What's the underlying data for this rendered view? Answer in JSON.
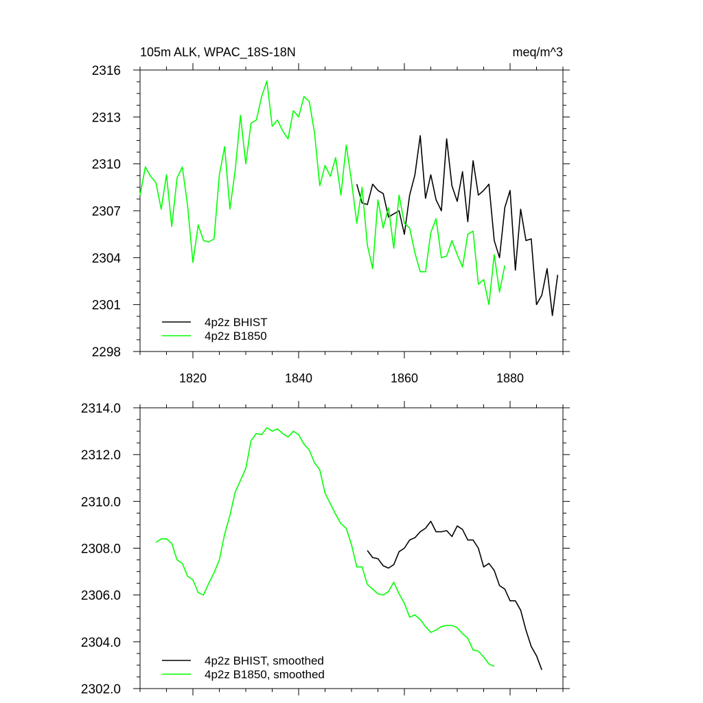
{
  "chart_data": [
    {
      "type": "line",
      "title_left": "105m ALK, WPAC_18S-18N",
      "title_right": "meq/m^3",
      "xlabel": "",
      "ylabel": "",
      "xlim": [
        1810,
        1890
      ],
      "ylim": [
        2298,
        2316
      ],
      "xticks": [
        1820,
        1840,
        1860,
        1880
      ],
      "xtick_labels": [
        "1820",
        "1840",
        "1860",
        "1880"
      ],
      "yticks": [
        2298,
        2301,
        2304,
        2307,
        2310,
        2313,
        2316
      ],
      "ytick_labels": [
        "2298",
        "2301",
        "2304",
        "2307",
        "2310",
        "2313",
        "2316"
      ],
      "grid": false,
      "legend_position": "bottom-left",
      "series": [
        {
          "name": "4p2z BHIST",
          "color": "#000000",
          "x": [
            1851,
            1852,
            1853,
            1854,
            1855,
            1856,
            1857,
            1858,
            1859,
            1860,
            1861,
            1862,
            1863,
            1864,
            1865,
            1866,
            1867,
            1868,
            1869,
            1870,
            1871,
            1872,
            1873,
            1874,
            1875,
            1876,
            1877,
            1878,
            1879,
            1880,
            1881,
            1882,
            1883,
            1884,
            1885,
            1886,
            1887,
            1888,
            1889
          ],
          "y": [
            2308.7,
            2307.5,
            2307.4,
            2308.7,
            2308.3,
            2308.1,
            2306.6,
            2306.8,
            2307.0,
            2305.5,
            2308.0,
            2309.3,
            2311.8,
            2307.8,
            2309.3,
            2307.7,
            2307.0,
            2311.6,
            2308.6,
            2307.6,
            2309.5,
            2306.3,
            2310.2,
            2308.0,
            2308.3,
            2308.7,
            2305.1,
            2304.0,
            2307.2,
            2308.3,
            2303.2,
            2307.1,
            2305.1,
            2305.2,
            2301.0,
            2301.6,
            2303.3,
            2300.3,
            2302.9
          ]
        },
        {
          "name": "4p2z B1850",
          "color": "#00ff00",
          "x": [
            1810,
            1811,
            1812,
            1813,
            1814,
            1815,
            1816,
            1817,
            1818,
            1819,
            1820,
            1821,
            1822,
            1823,
            1824,
            1825,
            1826,
            1827,
            1828,
            1829,
            1830,
            1831,
            1832,
            1833,
            1834,
            1835,
            1836,
            1837,
            1838,
            1839,
            1840,
            1841,
            1842,
            1843,
            1844,
            1845,
            1846,
            1847,
            1848,
            1849,
            1850,
            1851,
            1852,
            1853,
            1854,
            1855,
            1856,
            1857,
            1858,
            1859,
            1860,
            1861,
            1862,
            1863,
            1864,
            1865,
            1866,
            1867,
            1868,
            1869,
            1870,
            1871,
            1872,
            1873,
            1874,
            1875,
            1876,
            1877,
            1878,
            1879
          ],
          "y": [
            2308.0,
            2309.8,
            2309.2,
            2308.8,
            2307.1,
            2309.3,
            2306.0,
            2309.1,
            2309.8,
            2307.3,
            2303.7,
            2306.1,
            2305.1,
            2305.0,
            2305.2,
            2309.3,
            2311.1,
            2307.1,
            2309.6,
            2313.1,
            2310.0,
            2312.6,
            2312.8,
            2314.3,
            2315.3,
            2312.4,
            2312.8,
            2312.1,
            2311.6,
            2313.4,
            2313.0,
            2314.3,
            2314.0,
            2312.0,
            2308.6,
            2309.9,
            2309.2,
            2310.4,
            2308.0,
            2311.2,
            2308.9,
            2306.2,
            2308.5,
            2304.8,
            2303.3,
            2307.7,
            2305.9,
            2307.2,
            2304.6,
            2308.0,
            2306.2,
            2305.9,
            2304.3,
            2303.1,
            2303.1,
            2305.6,
            2306.5,
            2304.0,
            2304.1,
            2305.1,
            2304.2,
            2303.4,
            2305.5,
            2305.7,
            2302.3,
            2302.6,
            2301.0,
            2304.2,
            2301.8,
            2303.5
          ]
        }
      ]
    },
    {
      "type": "line",
      "title": "",
      "xlabel": "",
      "ylabel": "",
      "xlim": [
        1810,
        1890
      ],
      "ylim": [
        2302,
        2314
      ],
      "xticks": [
        1820,
        1840,
        1860,
        1880
      ],
      "yticks": [
        2302,
        2304,
        2306,
        2308,
        2310,
        2312,
        2314
      ],
      "ytick_labels": [
        "2302.0",
        "2304.0",
        "2306.0",
        "2308.0",
        "2310.0",
        "2312.0",
        "2314.0"
      ],
      "grid": false,
      "legend_position": "bottom-left",
      "series": [
        {
          "name": "4p2z BHIST, smoothed",
          "color": "#000000",
          "x": [
            1853,
            1854,
            1855,
            1856,
            1857,
            1858,
            1859,
            1860,
            1861,
            1862,
            1863,
            1864,
            1865,
            1866,
            1867,
            1868,
            1869,
            1870,
            1871,
            1872,
            1873,
            1874,
            1875,
            1876,
            1877,
            1878,
            1879,
            1880,
            1881,
            1882,
            1883,
            1884,
            1885,
            1886
          ],
          "y": [
            2307.9,
            2307.6,
            2307.55,
            2307.25,
            2307.15,
            2307.3,
            2307.85,
            2308.0,
            2308.35,
            2308.45,
            2308.7,
            2308.85,
            2309.15,
            2308.7,
            2308.7,
            2308.75,
            2308.5,
            2308.95,
            2308.8,
            2308.35,
            2308.35,
            2308.0,
            2307.2,
            2307.35,
            2307.05,
            2306.4,
            2306.25,
            2305.75,
            2305.75,
            2305.35,
            2304.5,
            2303.8,
            2303.4,
            2302.8
          ]
        },
        {
          "name": "4p2z B1850, smoothed",
          "color": "#00ff00",
          "x": [
            1813,
            1814,
            1815,
            1816,
            1817,
            1818,
            1819,
            1820,
            1821,
            1822,
            1823,
            1824,
            1825,
            1826,
            1827,
            1828,
            1829,
            1830,
            1831,
            1832,
            1833,
            1834,
            1835,
            1836,
            1837,
            1838,
            1839,
            1840,
            1841,
            1842,
            1843,
            1844,
            1845,
            1846,
            1847,
            1848,
            1849,
            1850,
            1851,
            1852,
            1853,
            1854,
            1855,
            1856,
            1857,
            1858,
            1859,
            1860,
            1861,
            1862,
            1863,
            1864,
            1865,
            1866,
            1867,
            1868,
            1869,
            1870,
            1871,
            1872,
            1873,
            1874,
            1875,
            1876,
            1877
          ],
          "y": [
            2308.25,
            2308.4,
            2308.4,
            2308.2,
            2307.5,
            2307.35,
            2306.8,
            2306.65,
            2306.1,
            2306.0,
            2306.5,
            2306.95,
            2307.5,
            2308.6,
            2309.4,
            2310.4,
            2310.9,
            2311.4,
            2312.6,
            2312.9,
            2312.85,
            2313.15,
            2313.0,
            2313.1,
            2312.9,
            2312.75,
            2313.0,
            2312.85,
            2312.45,
            2312.2,
            2311.65,
            2311.35,
            2310.35,
            2309.9,
            2309.45,
            2309.05,
            2308.85,
            2308.15,
            2307.2,
            2307.2,
            2306.45,
            2306.25,
            2306.05,
            2306.0,
            2306.15,
            2306.55,
            2306.05,
            2305.65,
            2305.05,
            2305.15,
            2304.95,
            2304.65,
            2304.4,
            2304.5,
            2304.65,
            2304.7,
            2304.7,
            2304.6,
            2304.35,
            2304.15,
            2303.65,
            2303.6,
            2303.35,
            2303.05,
            2302.95
          ]
        }
      ]
    }
  ]
}
